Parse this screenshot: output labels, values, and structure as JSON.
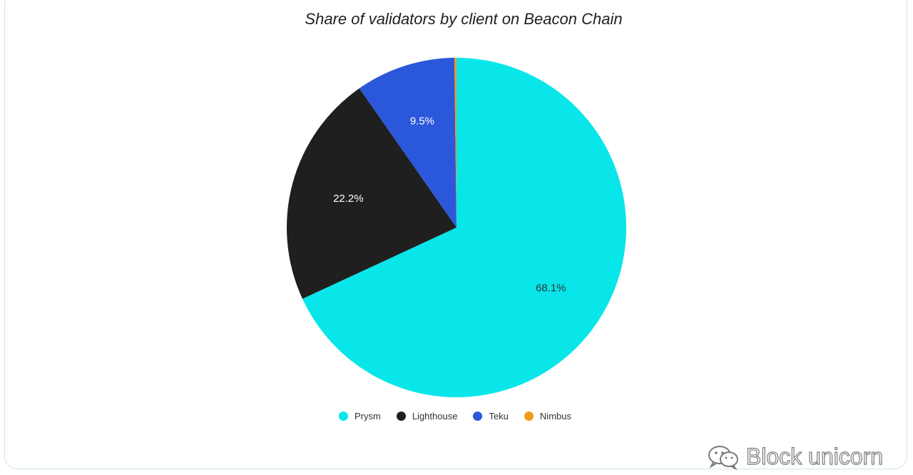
{
  "chart_data": {
    "type": "pie",
    "title": "Share of validators by client on Beacon Chain",
    "slices": [
      {
        "name": "Prysm",
        "value": 68.1,
        "label": "68.1%",
        "color": "#08e6ea",
        "label_color": "#333333"
      },
      {
        "name": "Lighthouse",
        "value": 22.2,
        "label": "22.2%",
        "color": "#1f1f1f",
        "label_color": "#ffffff"
      },
      {
        "name": "Teku",
        "value": 9.5,
        "label": "9.5%",
        "color": "#2b57db",
        "label_color": "#ffffff"
      },
      {
        "name": "Nimbus",
        "value": 0.2,
        "label": "",
        "color": "#f39a1b",
        "label_color": "#333333"
      }
    ],
    "legend_position": "bottom"
  },
  "watermark": {
    "text": "Block unicorn",
    "icon": "wechat-icon"
  }
}
